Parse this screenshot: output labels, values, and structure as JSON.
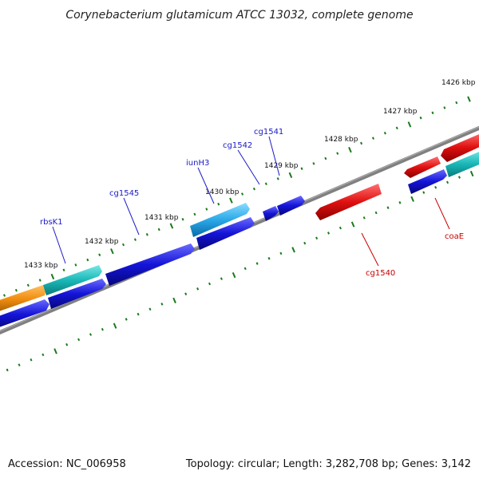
{
  "title": "Corynebacterium glutamicum ATCC 13032, complete genome",
  "accession_text": "Accession: NC_006958",
  "summary_text": "Topology: circular; Length: 3,282,708 bp; Genes: 3,142",
  "ruler": {
    "ticks": [
      "1426 kbp",
      "1427 kbp",
      "1428 kbp",
      "1429 kbp",
      "1430 kbp",
      "1431 kbp",
      "1432 kbp",
      "1433 kbp"
    ]
  },
  "colors": {
    "backbone": "#808080",
    "forward_blue": "#1414d8",
    "reverse_red": "#e01010",
    "cyan": "#1ab8b8",
    "light_blue": "#2aa8e8",
    "orange": "#f08c10",
    "tick_green": "#1a7a1a",
    "label_blue": "#1a1ac8",
    "label_red": "#c80000"
  },
  "gene_labels": [
    {
      "text": "rbsK1",
      "color": "blue"
    },
    {
      "text": "cg1545",
      "color": "blue"
    },
    {
      "text": "iunH3",
      "color": "blue"
    },
    {
      "text": "cg1542",
      "color": "blue"
    },
    {
      "text": "cg1541",
      "color": "blue"
    },
    {
      "text": "cg1540",
      "color": "red"
    },
    {
      "text": "coaE",
      "color": "red"
    }
  ]
}
